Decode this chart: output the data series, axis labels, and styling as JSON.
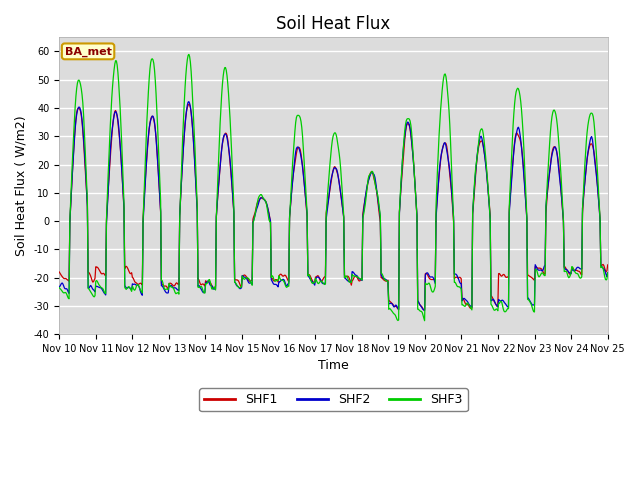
{
  "title": "Soil Heat Flux",
  "ylabel": "Soil Heat Flux (W/m2)",
  "xlabel": "Time",
  "ylim": [
    -40,
    65
  ],
  "yticks": [
    -40,
    -30,
    -20,
    -10,
    0,
    10,
    20,
    30,
    40,
    50,
    60
  ],
  "x_labels": [
    "Nov 10",
    "Nov 11",
    "Nov 12",
    "Nov 13",
    "Nov 14",
    "Nov 15",
    "Nov 16",
    "Nov 17",
    "Nov 18",
    "Nov 19",
    "Nov 20",
    "Nov 21",
    "Nov 22",
    "Nov 23",
    "Nov 24",
    "Nov 25"
  ],
  "station_label": "BA_met",
  "shf1_color": "#cc0000",
  "shf2_color": "#0000cc",
  "shf3_color": "#00cc00",
  "bg_color": "#dcdcdc",
  "legend_labels": [
    "SHF1",
    "SHF2",
    "SHF3"
  ],
  "title_fontsize": 12,
  "label_fontsize": 9,
  "tick_fontsize": 7,
  "day_peaks_shf12": [
    41,
    38,
    37,
    42,
    31,
    8,
    26,
    19,
    17,
    35,
    28,
    29,
    32,
    26,
    28
  ],
  "day_peaks_shf3": [
    51,
    56,
    57,
    58,
    54,
    9,
    38,
    32,
    17,
    37,
    52,
    32,
    47,
    39,
    39
  ],
  "night_base_shf1": [
    -20,
    -18,
    -22,
    -22,
    -22,
    -20,
    -20,
    -20,
    -20,
    -30,
    -20,
    -29,
    -20,
    -17,
    -17
  ],
  "night_base_shf2": [
    -24,
    -24,
    -24,
    -24,
    -23,
    -21,
    -21,
    -21,
    -20,
    -30,
    -20,
    -29,
    -29,
    -17,
    -17
  ],
  "night_base_shf3": [
    -26,
    -24,
    -24,
    -24,
    -23,
    -21,
    -21,
    -21,
    -20,
    -33,
    -22,
    -30,
    -30,
    -18,
    -18
  ]
}
